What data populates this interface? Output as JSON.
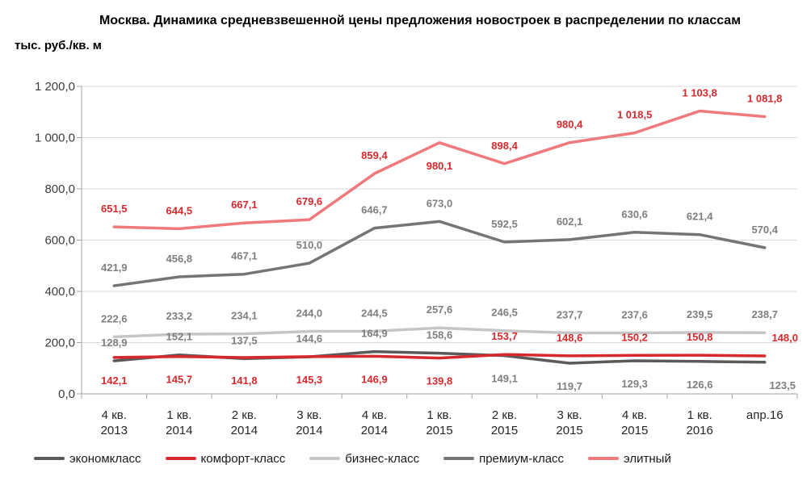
{
  "title": "Москва. Динамика средневзвешенной цены предложения новостроек в распределении по классам",
  "chart_data": {
    "type": "line",
    "ylabel": "тыс. руб./кв. м",
    "xlabel": "",
    "ylim": [
      0,
      1200
    ],
    "grid": true,
    "legend_position": "bottom",
    "y_ticks": [
      {
        "v": 1200,
        "label": "1 200,0"
      },
      {
        "v": 1000,
        "label": "1 000,0"
      },
      {
        "v": 800,
        "label": "800,0"
      },
      {
        "v": 600,
        "label": "600,0"
      },
      {
        "v": 400,
        "label": "400,0"
      },
      {
        "v": 200,
        "label": "200,0"
      },
      {
        "v": 0,
        "label": "0,0"
      }
    ],
    "categories": [
      [
        "4 кв.",
        "2013"
      ],
      [
        "1 кв.",
        "2014"
      ],
      [
        "2 кв.",
        "2014"
      ],
      [
        "3 кв.",
        "2014"
      ],
      [
        "4 кв.",
        "2014"
      ],
      [
        "1 кв.",
        "2015"
      ],
      [
        "2 кв.",
        "2015"
      ],
      [
        "3 кв.",
        "2015"
      ],
      [
        "4 кв.",
        "2015"
      ],
      [
        "1 кв.",
        "2016"
      ],
      [
        "апр.16"
      ]
    ],
    "series": [
      {
        "name": "экономкласс",
        "slug": "ekonomklass",
        "color": "#5A5A5A",
        "label_color": "#7F7F7F",
        "values": [
          128.9,
          152.1,
          137.5,
          144.6,
          164.9,
          158.6,
          149.1,
          119.7,
          129.3,
          126.6,
          123.5
        ],
        "labels": [
          "128,9",
          "152,1",
          "137,5",
          "144,6",
          "164,9",
          "158,6",
          "149,1",
          "119,7",
          "129,3",
          "126,6",
          "123,5"
        ],
        "sides": [
          "above",
          "above",
          "above",
          "above",
          "above",
          "above",
          "below",
          "below",
          "below",
          "below",
          "below"
        ],
        "label_dx": [
          0,
          0,
          0,
          0,
          0,
          0,
          0,
          0,
          0,
          0,
          22
        ]
      },
      {
        "name": "комфорт-класс",
        "slug": "komfort-klass",
        "color": "#D6292D",
        "label_color": "#D6292D",
        "values": [
          142.1,
          145.7,
          141.8,
          145.3,
          146.9,
          139.8,
          153.7,
          148.6,
          150.2,
          150.8,
          148.0
        ],
        "labels": [
          "142,1",
          "145,7",
          "141,8",
          "145,3",
          "146,9",
          "139,8",
          "153,7",
          "148,6",
          "150,2",
          "150,8",
          "148,0"
        ],
        "sides": [
          "below",
          "below",
          "below",
          "below",
          "below",
          "below",
          "above",
          "above",
          "above",
          "above",
          "above"
        ],
        "label_dx": [
          0,
          0,
          0,
          0,
          0,
          0,
          0,
          0,
          0,
          0,
          25
        ]
      },
      {
        "name": "бизнес-класс",
        "slug": "biznes-klass",
        "color": "#C6C6C6",
        "label_color": "#7F7F7F",
        "values": [
          222.6,
          233.2,
          234.1,
          244.0,
          244.5,
          257.6,
          246.5,
          237.7,
          237.6,
          239.5,
          238.7
        ],
        "labels": [
          "222,6",
          "233,2",
          "234,1",
          "244,0",
          "244,5",
          "257,6",
          "246,5",
          "237,7",
          "237,6",
          "239,5",
          "238,7"
        ],
        "sides": [
          "above",
          "above",
          "above",
          "above",
          "above",
          "above",
          "above",
          "above",
          "above",
          "above",
          "above"
        ],
        "label_dx": [
          0,
          0,
          0,
          0,
          0,
          0,
          0,
          0,
          0,
          0,
          0
        ]
      },
      {
        "name": "премиум-класс",
        "slug": "premium-klass",
        "color": "#757575",
        "label_color": "#7F7F7F",
        "values": [
          421.9,
          456.8,
          467.1,
          510.0,
          646.7,
          673.0,
          592.5,
          602.1,
          630.6,
          621.4,
          570.4
        ],
        "labels": [
          "421,9",
          "456,8",
          "467,1",
          "510,0",
          "646,7",
          "673,0",
          "592,5",
          "602,1",
          "630,6",
          "621,4",
          "570,4"
        ],
        "sides": [
          "above",
          "above",
          "above",
          "above",
          "above",
          "above",
          "above",
          "above",
          "above",
          "above",
          "above"
        ],
        "label_dx": [
          0,
          0,
          0,
          0,
          0,
          0,
          0,
          0,
          0,
          0,
          0
        ]
      },
      {
        "name": "элитный",
        "slug": "elitny",
        "color": "#F0797C",
        "label_color": "#D6292D",
        "values": [
          651.5,
          644.5,
          667.1,
          679.6,
          859.4,
          980.1,
          898.4,
          980.4,
          1018.5,
          1103.8,
          1081.8
        ],
        "labels": [
          "651,5",
          "644,5",
          "667,1",
          "679,6",
          "859,4",
          "980,1",
          "898,4",
          "980,4",
          "1 018,5",
          "1 103,8",
          "1 081,8"
        ],
        "sides": [
          "above",
          "above",
          "above",
          "above",
          "above",
          "below",
          "above",
          "above",
          "above",
          "above",
          "above"
        ],
        "label_dx": [
          0,
          0,
          0,
          0,
          0,
          0,
          0,
          0,
          0,
          0,
          0
        ]
      }
    ]
  },
  "colors": {
    "gridline": "#D9D9D9",
    "axis": "#A6A6A6",
    "tick_label": "#3D3D3D",
    "category_label": "#262626"
  }
}
